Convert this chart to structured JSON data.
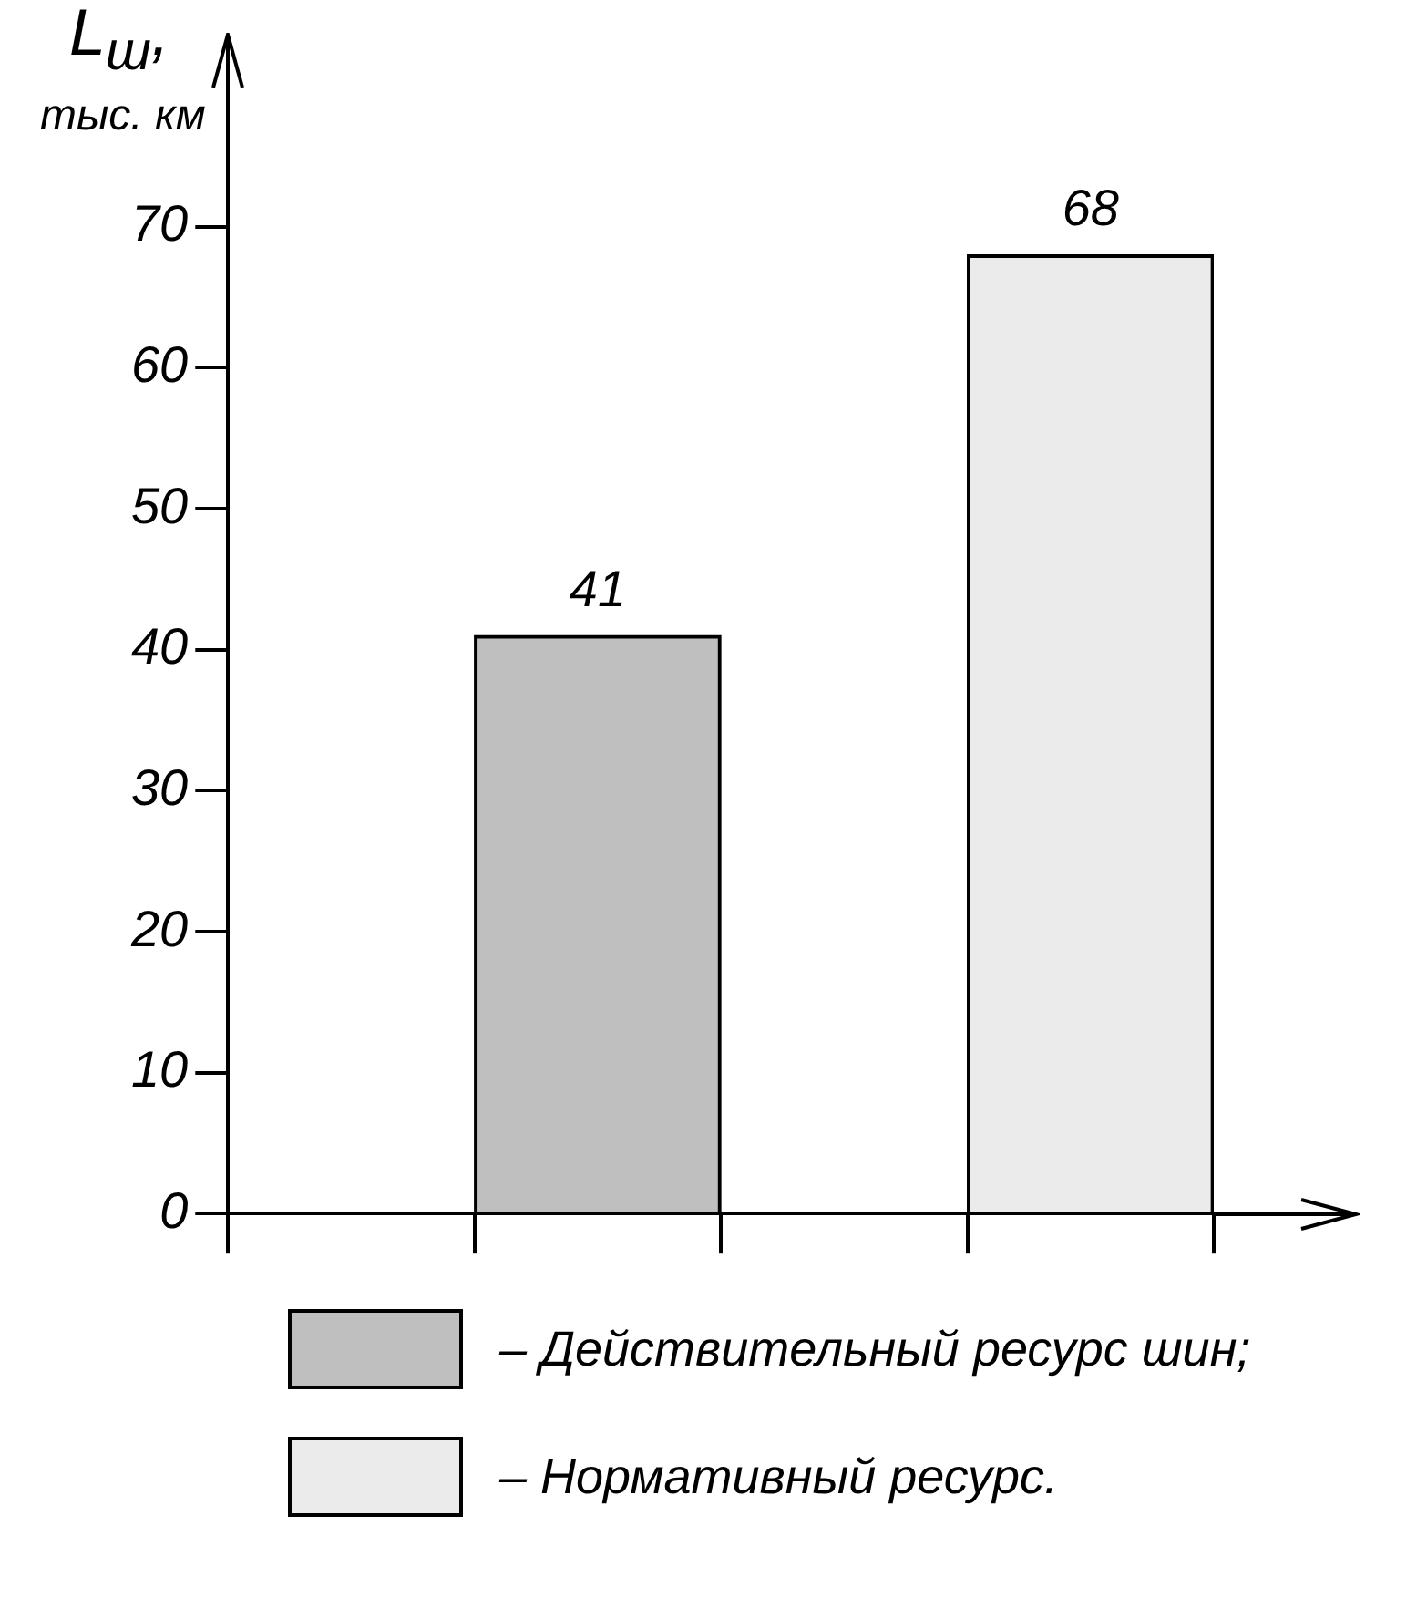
{
  "chart_data": {
    "type": "bar",
    "ylabel": "L$_{ш}$, тыс. км",
    "categories": [
      null,
      null,
      null,
      null
    ],
    "series": [
      {
        "name": "– Действительный ресурс шин;",
        "color": "#bfbfbf",
        "values": [
          null,
          41,
          null,
          null
        ]
      },
      {
        "name": "– Нормативный ресурс.",
        "color": "#ebebeb",
        "values": [
          null,
          null,
          null,
          68
        ]
      }
    ],
    "ylim": [
      0,
      76
    ],
    "yticks": [
      0,
      10,
      20,
      30,
      40,
      50,
      60,
      70
    ],
    "grid": false,
    "legend": "bottom",
    "data_labels": true
  }
}
